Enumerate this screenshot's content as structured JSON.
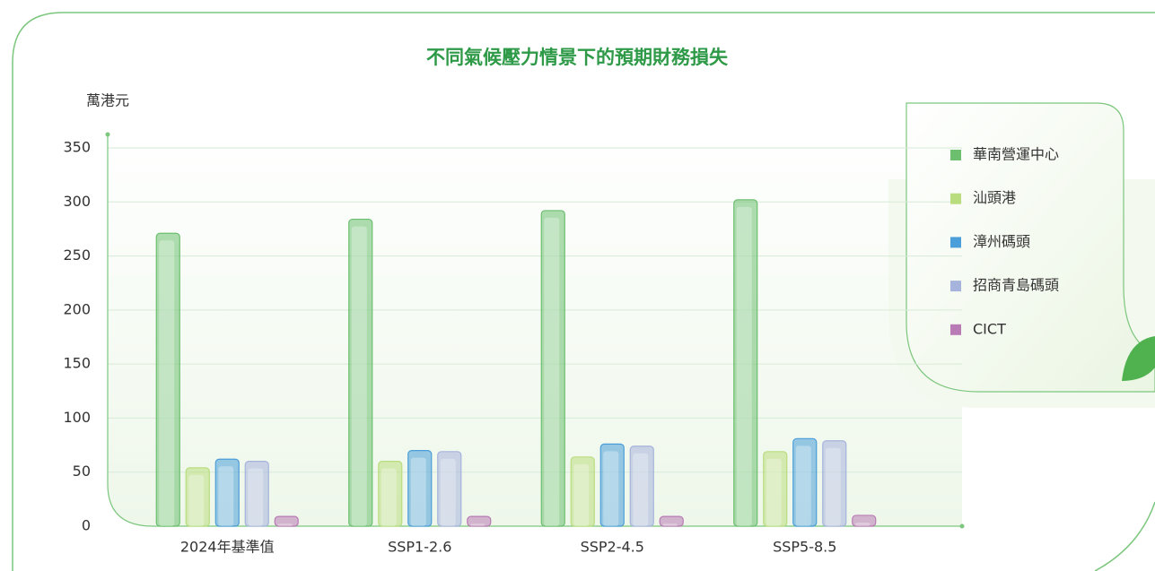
{
  "chart_data": {
    "type": "bar",
    "title": "不同氣候壓力情景下的預期財務損失",
    "y_axis_label": "萬港元",
    "categories": [
      "2024年基準值",
      "SSP1-2.6",
      "SSP2-4.5",
      "SSP5-8.5"
    ],
    "series": [
      {
        "name": "華南營運中心",
        "color": "#6cbf6f",
        "values": [
          271,
          284,
          292,
          302
        ]
      },
      {
        "name": "汕頭港",
        "color": "#b9dd7e",
        "values": [
          54,
          60,
          64,
          69
        ]
      },
      {
        "name": "漳州碼頭",
        "color": "#4a9ed9",
        "values": [
          62,
          70,
          76,
          81
        ]
      },
      {
        "name": "招商青島碼頭",
        "color": "#a6b3dc",
        "values": [
          60,
          69,
          74,
          79
        ]
      },
      {
        "name": "CICT",
        "color": "#b97bb5",
        "values": [
          9,
          9,
          9,
          10
        ]
      }
    ],
    "ylim": [
      0,
      350
    ],
    "yticks": [
      0,
      50,
      100,
      150,
      200,
      250,
      300,
      350
    ],
    "grid": true,
    "legend": "right"
  }
}
